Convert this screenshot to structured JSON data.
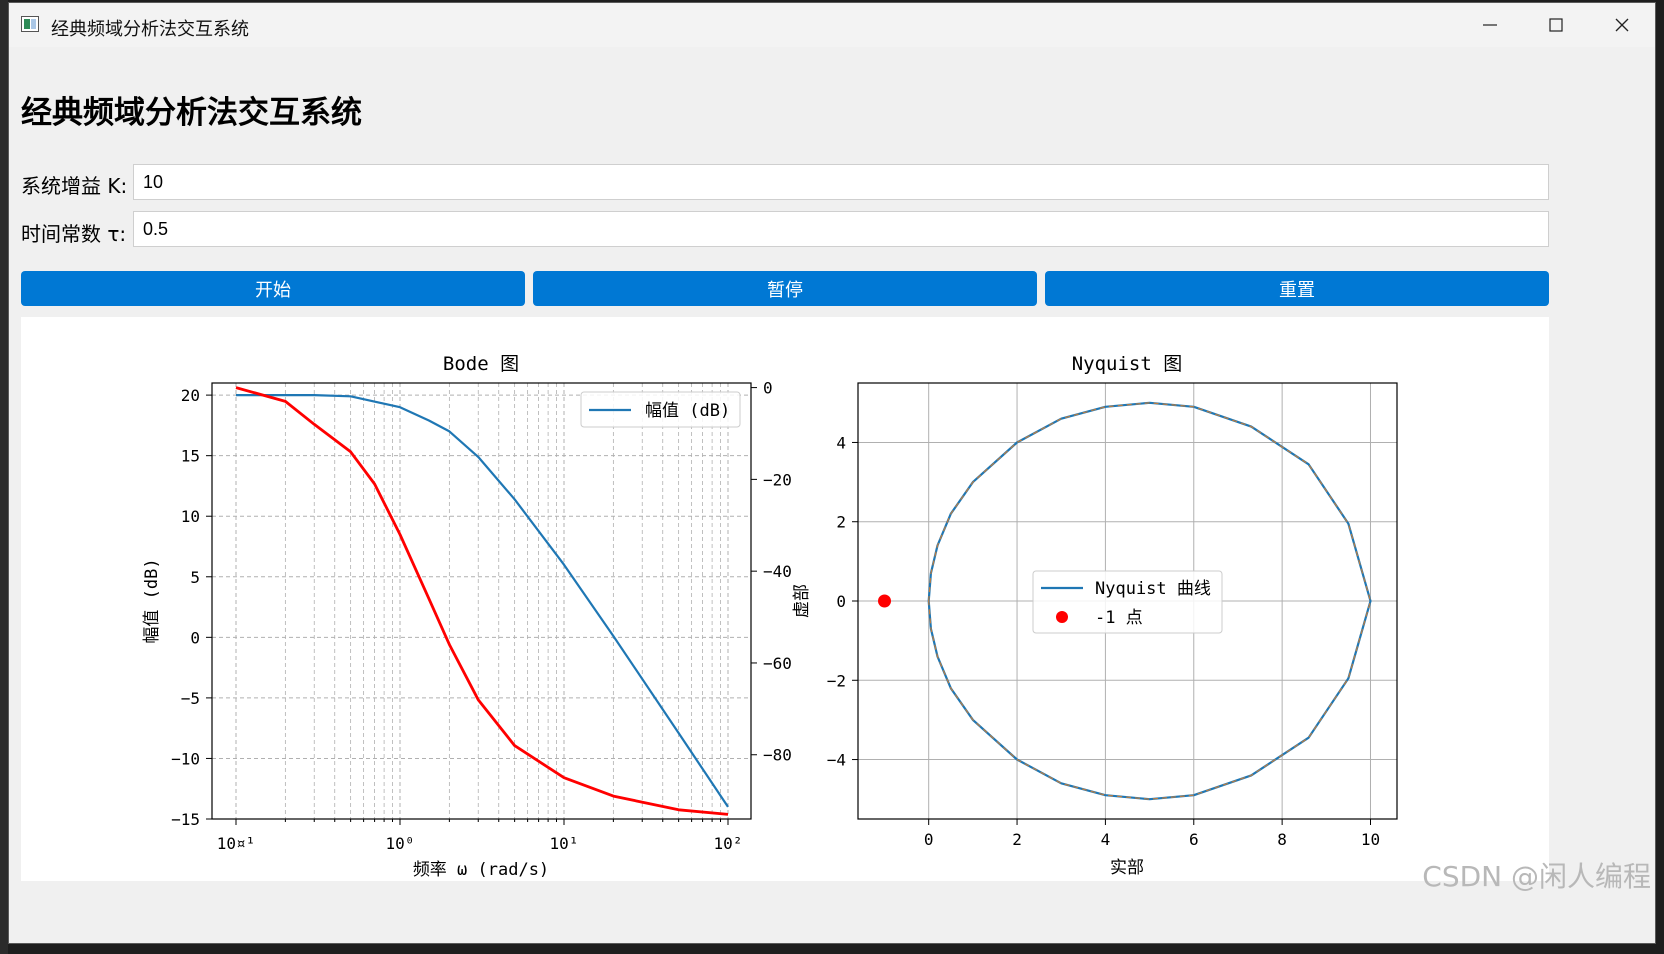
{
  "window": {
    "title": "经典频域分析法交互系统",
    "min_icon": "minimize-icon",
    "max_icon": "maximize-icon",
    "close_icon": "close-icon"
  },
  "heading": "经典频域分析法交互系统",
  "form": {
    "gain_label": "系统增益 K:",
    "gain_value": "10",
    "tau_label": "时间常数 τ:",
    "tau_value": "0.5"
  },
  "buttons": {
    "start": "开始",
    "pause": "暂停",
    "reset": "重置"
  },
  "colors": {
    "accent": "#0078d4",
    "series_blue": "#1f77b4",
    "series_red": "#ff0000"
  },
  "watermark": "CSDN @闲人编程",
  "chart_data": [
    {
      "type": "line",
      "title": "Bode 图",
      "xlabel": "频率 ω (rad/s)",
      "ylabel": "幅值 (dB)",
      "xscale": "log",
      "xlim": [
        0.1,
        100
      ],
      "ylim": [
        -15,
        21
      ],
      "y2lim": [
        -94,
        1
      ],
      "x_tick_labels": [
        "10¤¹",
        "10⁰",
        "10¹",
        "10²"
      ],
      "y_ticks": [
        20,
        15,
        10,
        5,
        0,
        -5,
        -10,
        -15
      ],
      "y2_ticks": [
        0,
        -20,
        -40,
        -60,
        -80
      ],
      "grid": true,
      "legend_position": "upper right",
      "series": [
        {
          "name": "幅值 (dB)",
          "axis": "left",
          "x": [
            0.1,
            0.3,
            0.5,
            1,
            1.5,
            2,
            3,
            5,
            10,
            20,
            50,
            100
          ],
          "values": [
            20,
            20,
            19.9,
            19.0,
            17.9,
            17.0,
            14.9,
            11.4,
            6.0,
            0.1,
            -7.9,
            -14.0
          ]
        },
        {
          "axis": "right",
          "x": [
            0.1,
            0.2,
            0.3,
            0.5,
            0.7,
            1,
            1.5,
            2,
            3,
            5,
            10,
            20,
            50,
            100
          ],
          "values": [
            0,
            -3,
            -8,
            -14,
            -21,
            -32,
            -46,
            -56,
            -68,
            -78,
            -85,
            -89,
            -92,
            -93
          ]
        }
      ]
    },
    {
      "type": "line",
      "title": "Nyquist 图",
      "xlabel": "实部",
      "ylabel": "虚部",
      "xlim": [
        -1.6,
        10.6
      ],
      "ylim": [
        -5.5,
        5.5
      ],
      "x_ticks": [
        0,
        2,
        4,
        6,
        8,
        10
      ],
      "y_ticks": [
        4,
        2,
        0,
        -2,
        -4
      ],
      "grid": true,
      "legend_position": "center",
      "series": [
        {
          "name": "Nyquist 曲线",
          "x": [
            0,
            0.05,
            0.2,
            0.5,
            1,
            2,
            3,
            4,
            5,
            6,
            7.3,
            8.6,
            9.5,
            10
          ],
          "values": [
            0,
            0.7,
            1.4,
            2.2,
            3.0,
            4.0,
            4.6,
            4.9,
            5.0,
            4.9,
            4.4,
            3.45,
            1.95,
            0
          ]
        },
        {
          "name": "-1 点",
          "marker": "circle",
          "x": [
            -1
          ],
          "values": [
            0
          ]
        }
      ]
    }
  ]
}
